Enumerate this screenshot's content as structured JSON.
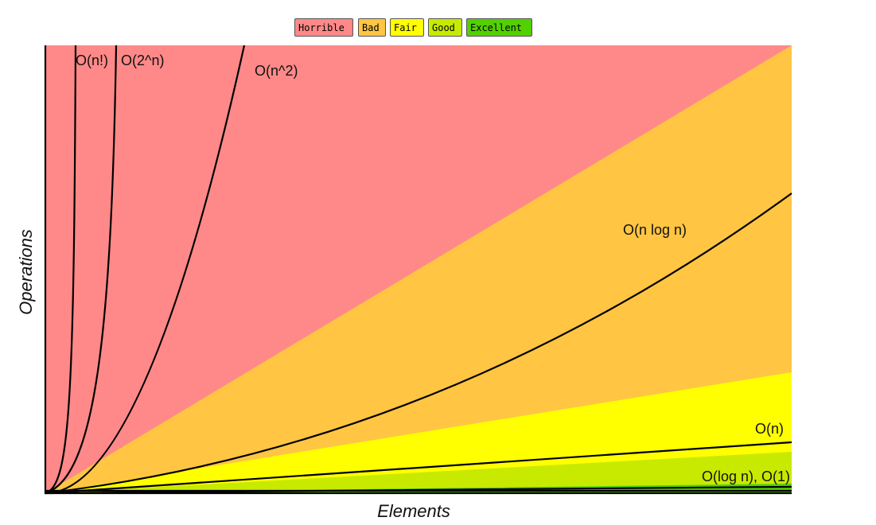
{
  "chart_data": {
    "type": "complexity",
    "xlabel": "Elements",
    "ylabel": "Operations",
    "legend": [
      {
        "label": "Horrible",
        "color": "#ff8989"
      },
      {
        "label": "Bad",
        "color": "#ffc543"
      },
      {
        "label": "Fair",
        "color": "#ffff00"
      },
      {
        "label": "Good",
        "color": "#c8ea00"
      },
      {
        "label": "Excellent",
        "color": "#53d000"
      }
    ],
    "curves": [
      {
        "label": "O(n!)"
      },
      {
        "label": "O(2^n)"
      },
      {
        "label": "O(n^2)"
      },
      {
        "label": "O(n log n)"
      },
      {
        "label": "O(n)"
      },
      {
        "label": "O(log n), O(1)"
      }
    ]
  }
}
